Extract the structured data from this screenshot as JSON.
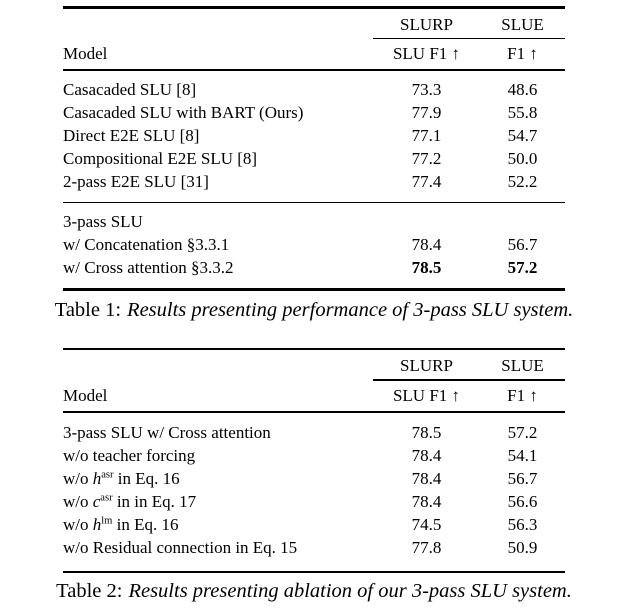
{
  "page": {
    "background": "#ffffff",
    "text_color": "#000000",
    "rule_color": "#000000"
  },
  "tables": [
    {
      "group_header": {
        "slurp": "SLURP",
        "slue": "SLUE"
      },
      "col_header": {
        "model": "Model",
        "slurp": "SLU F1 ↑",
        "slue": "F1 ↑"
      },
      "sections": [
        {
          "rows": [
            {
              "model": "Casacaded SLU [8]",
              "slurp": "73.3",
              "slue": "48.6"
            },
            {
              "model": "Casacaded SLU with BART (Ours)",
              "slurp": "77.9",
              "slue": "55.8"
            },
            {
              "model": "Direct E2E SLU [8]",
              "slurp": "77.1",
              "slue": "54.7"
            },
            {
              "model": "Compositional E2E SLU [8]",
              "slurp": "77.2",
              "slue": "50.0"
            },
            {
              "model": "2-pass E2E SLU [31]",
              "slurp": "77.4",
              "slue": "52.2"
            }
          ]
        },
        {
          "rows": [
            {
              "model": "3-pass SLU",
              "slurp": "",
              "slue": ""
            },
            {
              "model": "w/ Concatenation §3.3.1",
              "slurp": "78.4",
              "slue": "56.7"
            },
            {
              "model": "w/ Cross attention §3.3.2",
              "slurp": "78.5",
              "slue": "57.2",
              "bold": true
            }
          ]
        }
      ],
      "caption": {
        "prefix": "Table 1:",
        "text": "Results presenting performance of 3-pass SLU system."
      }
    },
    {
      "group_header": {
        "slurp": "SLURP",
        "slue": "SLUE"
      },
      "col_header": {
        "model": "Model",
        "slurp": "SLU F1 ↑",
        "slue": "F1 ↑"
      },
      "sections": [
        {
          "rows": [
            {
              "model": "3-pass SLU w/ Cross attention",
              "slurp": "78.5",
              "slue": "57.2"
            },
            {
              "model": "w/o teacher forcing",
              "slurp": "78.4",
              "slue": "54.1"
            },
            {
              "model": [
                {
                  "t": "w/o "
                },
                {
                  "t": "h",
                  "italic": true
                },
                {
                  "t": "asr",
                  "sup": true
                },
                {
                  "t": " in Eq. 16"
                }
              ],
              "slurp": "78.4",
              "slue": "56.7"
            },
            {
              "model": [
                {
                  "t": "w/o "
                },
                {
                  "t": "c",
                  "italic": true
                },
                {
                  "t": "asr",
                  "sup": true
                },
                {
                  "t": " in in Eq. 17"
                }
              ],
              "slurp": "78.4",
              "slue": "56.6"
            },
            {
              "model": [
                {
                  "t": "w/o "
                },
                {
                  "t": "h",
                  "italic": true
                },
                {
                  "t": "lm",
                  "sup": true
                },
                {
                  "t": " in Eq. 16"
                }
              ],
              "slurp": "74.5",
              "slue": "56.3"
            },
            {
              "model": "w/o Residual connection in Eq. 15",
              "slurp": "77.8",
              "slue": "50.9"
            }
          ]
        }
      ],
      "caption": {
        "prefix": "Table 2:",
        "text": "Results presenting ablation of our 3-pass SLU system."
      }
    }
  ]
}
